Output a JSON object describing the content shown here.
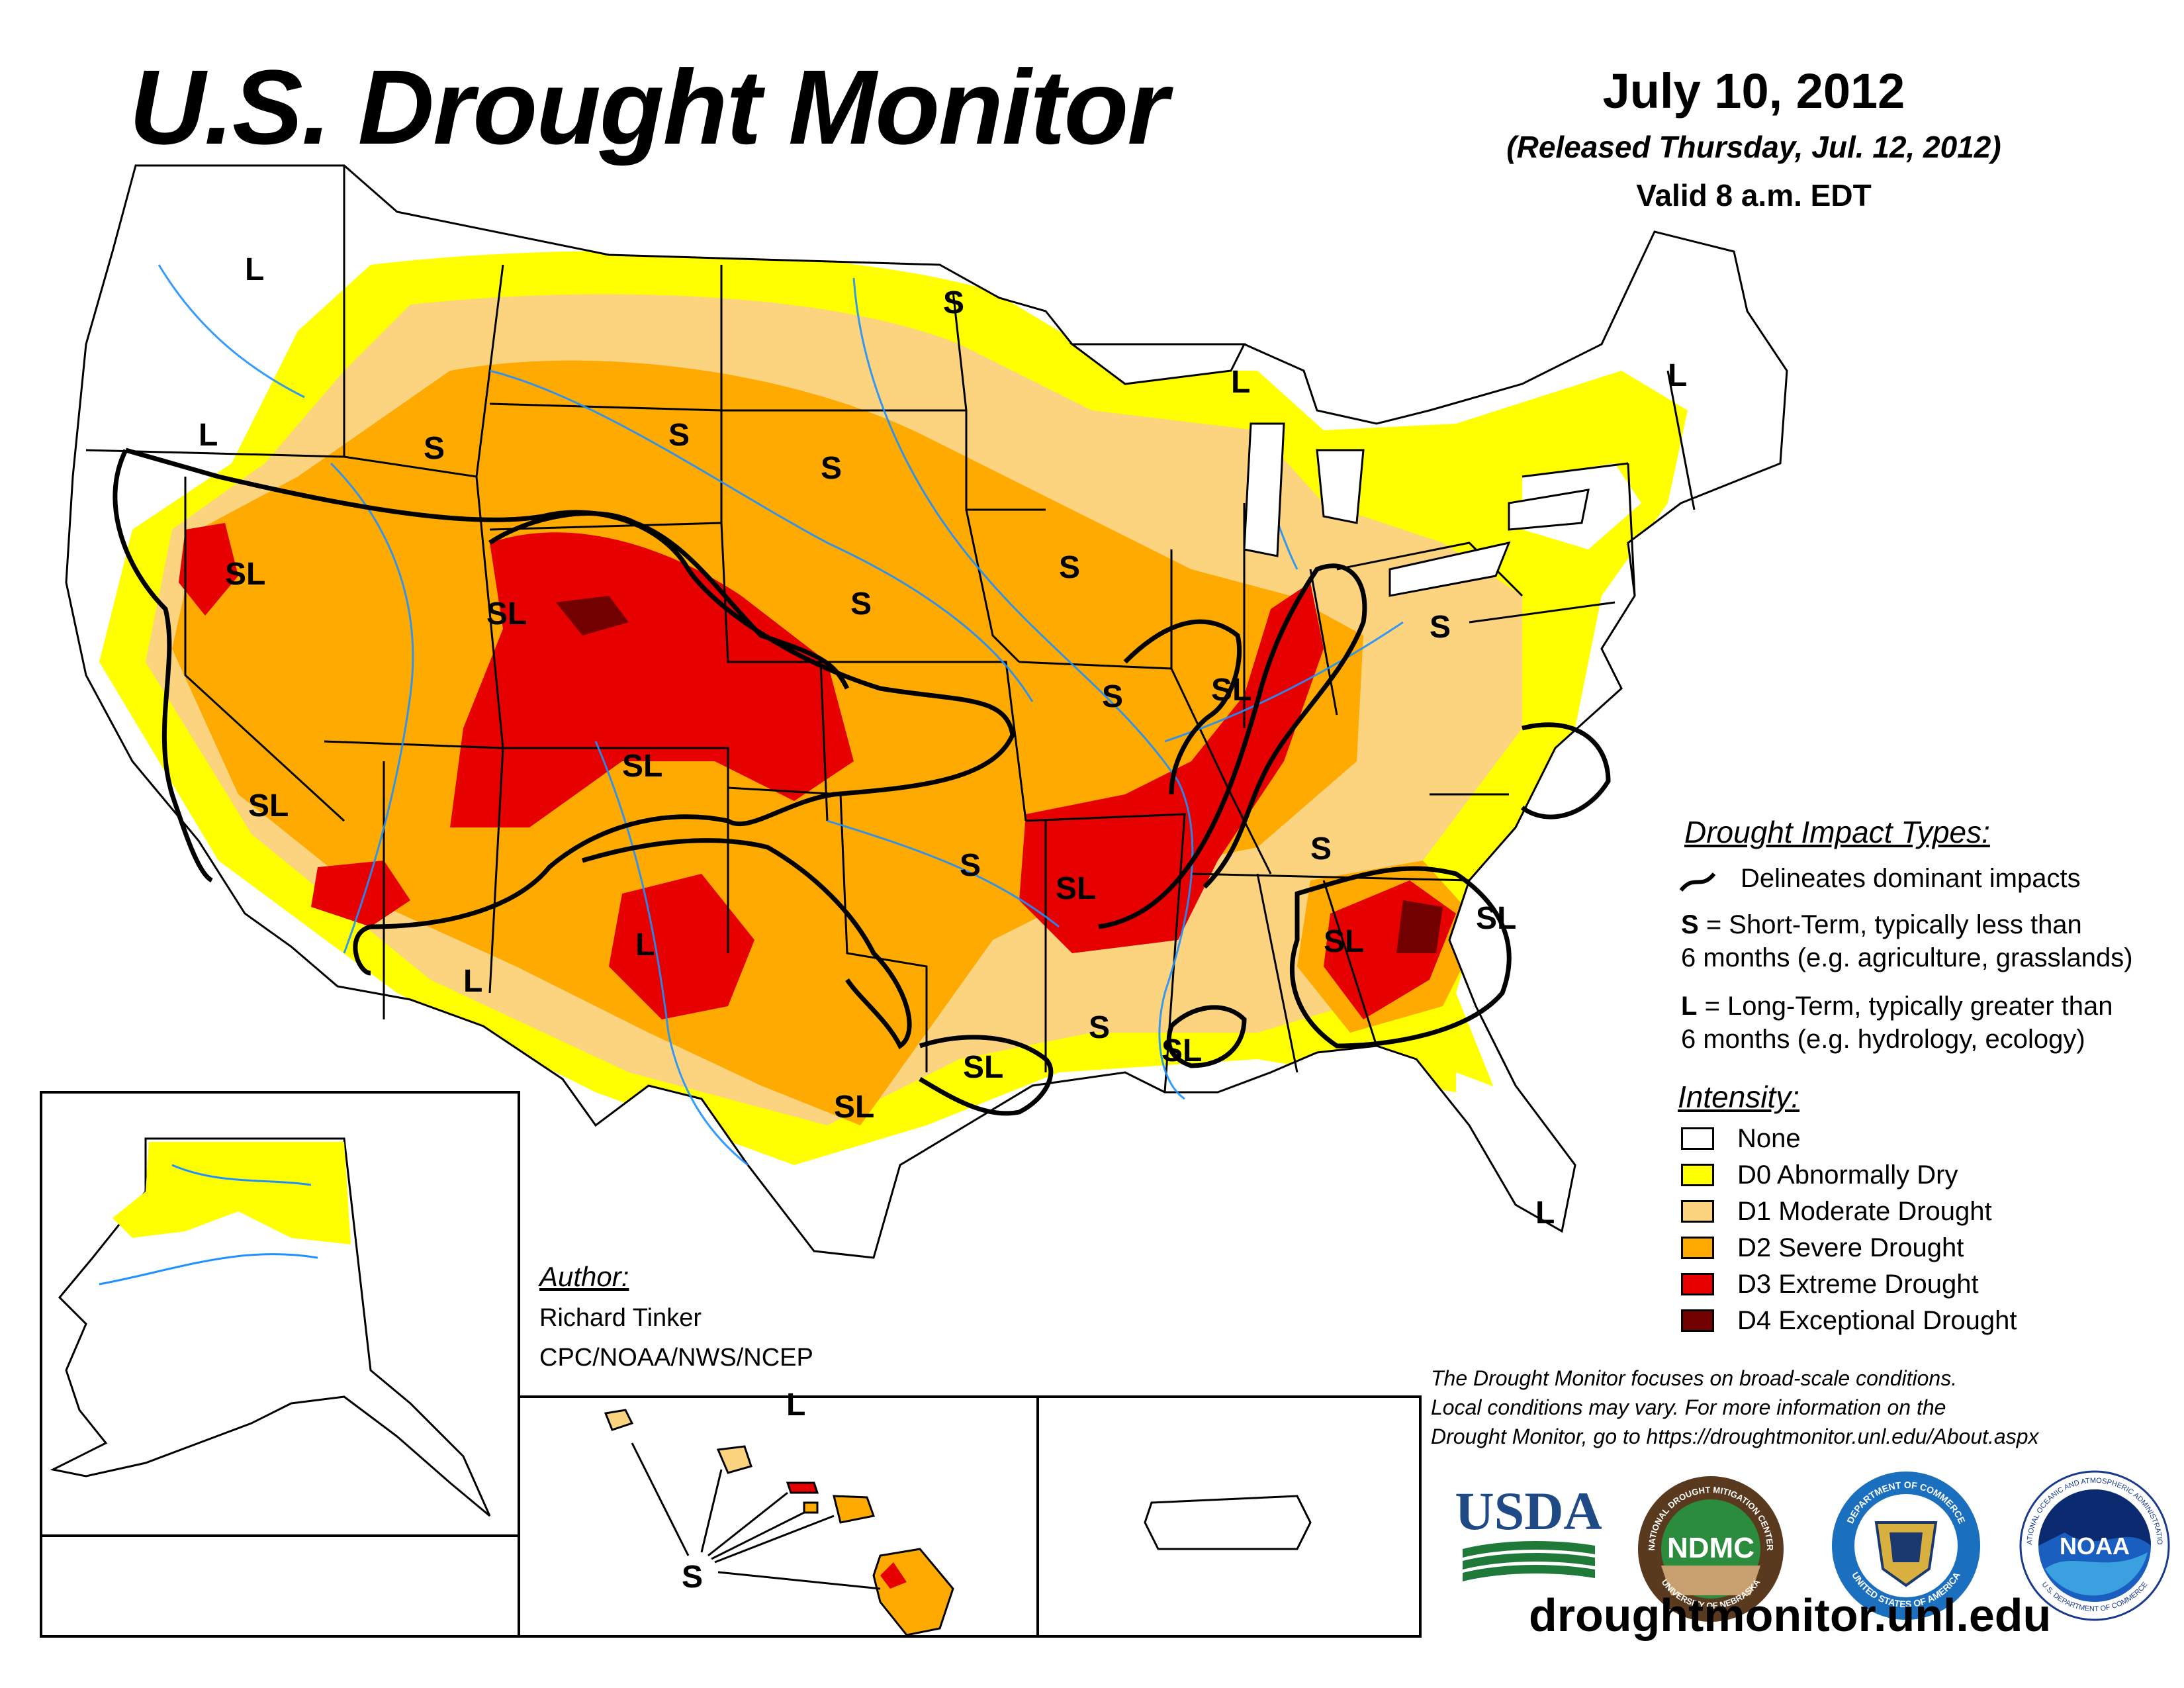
{
  "header": {
    "title": "U.S. Drought Monitor",
    "date": "July 10, 2012",
    "released": "(Released Thursday, Jul. 12, 2012)",
    "valid": "Valid 8 a.m. EDT"
  },
  "impact_legend": {
    "heading": "Drought Impact Types:",
    "delineates": "Delineates dominant impacts",
    "short_term_key": "S",
    "short_term_line1": "= Short-Term, typically less than",
    "short_term_line2": "6 months (e.g. agriculture, grasslands)",
    "long_term_key": "L",
    "long_term_line1": "= Long-Term, typically greater than",
    "long_term_line2": "6 months (e.g. hydrology, ecology)"
  },
  "intensity_legend": {
    "heading": "Intensity:",
    "items": [
      {
        "label": "None",
        "color": "#ffffff"
      },
      {
        "label": "D0 Abnormally Dry",
        "color": "#ffff00"
      },
      {
        "label": "D1 Moderate Drought",
        "color": "#fcd37f"
      },
      {
        "label": "D2 Severe Drought",
        "color": "#ffaa00"
      },
      {
        "label": "D3 Extreme Drought",
        "color": "#e60000"
      },
      {
        "label": "D4 Exceptional Drought",
        "color": "#730000"
      }
    ]
  },
  "author": {
    "heading": "Author:",
    "name": "Richard Tinker",
    "org": "CPC/NOAA/NWS/NCEP"
  },
  "note": {
    "line1": "The Drought Monitor focuses on broad-scale conditions.",
    "line2": "Local conditions may vary. For more information on the",
    "line3": "Drought Monitor, go to https://droughtmonitor.unl.edu/About.aspx"
  },
  "logos": {
    "usda": "USDA",
    "ndmc": "NDMC",
    "ndmc_ring_top": "NATIONAL DROUGHT MITIGATION CENTER",
    "ndmc_ring_bottom": "UNIVERSITY OF NEBRASKA",
    "commerce_ring_top": "DEPARTMENT OF COMMERCE",
    "commerce_ring_bottom": "UNITED STATES OF AMERICA",
    "noaa": "NOAA",
    "noaa_ring_top": "NATIONAL OCEANIC AND ATMOSPHERIC ADMINISTRATION",
    "noaa_ring_bottom": "U.S. DEPARTMENT OF COMMERCE"
  },
  "website": "droughtmonitor.unl.edu",
  "map_labels": {
    "wa_l": "L",
    "or_l": "L",
    "mt_s": "S",
    "nd_s": "S",
    "mn_s": "S",
    "sd_s": "S",
    "nv_sl": "SL",
    "wy_sl": "SL",
    "ne_s": "S",
    "ia_s": "S",
    "mi_l": "L",
    "ny_l": "L",
    "mo_s": "S",
    "oh_s": "S",
    "il_sl": "SL",
    "co_sl": "SL",
    "ca_sl": "SL",
    "az_l": "L",
    "nm_l": "L",
    "ok_s": "S",
    "ar_sl": "SL",
    "tn_s": "S",
    "ga_sl": "SL",
    "sc_sl": "SL",
    "tx_sl": "SL",
    "la_sl": "SL",
    "ms_sl": "SL",
    "la_s": "S",
    "fl_l": "L",
    "hi_s": "S",
    "hi_l": "L"
  }
}
